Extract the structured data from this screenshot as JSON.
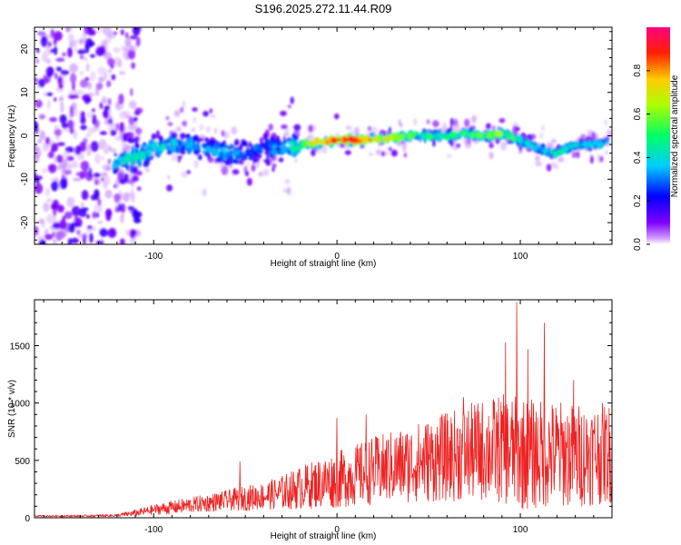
{
  "page": {
    "title": "S196.2025.272.11.44.R09"
  },
  "chart_data": [
    {
      "type": "heatmap",
      "title": "S196.2025.272.11.44.R09",
      "xlabel": "Height of straight line (km)",
      "ylabel": "Frequency (Hz)",
      "xlim": [
        -165,
        150
      ],
      "ylim": [
        -25,
        25
      ],
      "x_ticks": [
        -100,
        0,
        100
      ],
      "y_ticks": [
        -20,
        -10,
        0,
        10,
        20
      ],
      "x_tick_labels": [
        "-100",
        "0",
        "100"
      ],
      "y_tick_labels": [
        "-20",
        "-10",
        "0",
        "10",
        "20"
      ],
      "colorbar": {
        "label": "Normalized spectral amplitude",
        "range": [
          0,
          1
        ],
        "ticks": [
          0.0,
          0.2,
          0.4,
          0.6,
          0.8
        ],
        "tick_labels": [
          "0.0",
          "0.2",
          "0.4",
          "0.6",
          "0.8"
        ],
        "colormap": [
          "#ffffff",
          "#7f00ff",
          "#0000ff",
          "#00ffff",
          "#00ff00",
          "#ffff00",
          "#ff0000",
          "#ff0080"
        ]
      },
      "ridge": {
        "x": [
          -120,
          -110,
          -100,
          -90,
          -80,
          -70,
          -60,
          -50,
          -40,
          -30,
          -20,
          -10,
          0,
          10,
          20,
          30,
          40,
          50,
          60,
          70,
          80,
          90,
          100,
          110,
          120,
          130,
          140,
          148
        ],
        "freq": [
          -6,
          -5,
          -3,
          -2,
          -2,
          -3,
          -4,
          -4,
          -3,
          -3,
          -2,
          -1.5,
          -1,
          -1,
          -0.8,
          -0.5,
          0,
          0,
          0,
          0.5,
          0,
          0.5,
          -1,
          -3,
          -4,
          -2,
          -2,
          -1.5
        ],
        "amplitude": [
          0.4,
          0.45,
          0.4,
          0.4,
          0.35,
          0.35,
          0.35,
          0.3,
          0.3,
          0.35,
          0.5,
          0.75,
          0.85,
          0.9,
          0.8,
          0.65,
          0.55,
          0.5,
          0.5,
          0.5,
          0.55,
          0.6,
          0.45,
          0.4,
          0.45,
          0.4,
          0.4,
          0.45
        ]
      }
    },
    {
      "type": "line",
      "xlabel": "Height of straight line (km)",
      "ylabel": "SNR (10 * v/v)",
      "xlim": [
        -165,
        150
      ],
      "ylim": [
        0,
        1900
      ],
      "x_ticks": [
        -100,
        0,
        100
      ],
      "y_ticks": [
        0,
        500,
        1000,
        1500
      ],
      "x_tick_labels": [
        "-100",
        "0",
        "100"
      ],
      "y_tick_labels": [
        "0",
        "500",
        "1000",
        "1500"
      ],
      "line_color": "#ee2222",
      "envelope": {
        "x": [
          -165,
          -140,
          -120,
          -110,
          -100,
          -90,
          -80,
          -70,
          -60,
          -50,
          -40,
          -30,
          -20,
          -10,
          0,
          10,
          20,
          30,
          40,
          50,
          60,
          70,
          80,
          90,
          100,
          110,
          120,
          130,
          140,
          150
        ],
        "mean": [
          15,
          15,
          20,
          40,
          70,
          90,
          110,
          130,
          150,
          170,
          190,
          220,
          260,
          300,
          330,
          370,
          410,
          440,
          470,
          500,
          530,
          560,
          590,
          600,
          560,
          550,
          560,
          540,
          560,
          560
        ],
        "amplitude": [
          6,
          8,
          12,
          30,
          45,
          60,
          70,
          80,
          90,
          110,
          120,
          150,
          190,
          220,
          250,
          270,
          300,
          320,
          340,
          370,
          390,
          420,
          450,
          480,
          500,
          480,
          470,
          460,
          450,
          440
        ]
      },
      "peaks": [
        {
          "x": -53,
          "y": 490
        },
        {
          "x": 0,
          "y": 870
        },
        {
          "x": 16,
          "y": 900
        },
        {
          "x": 69,
          "y": 1050
        },
        {
          "x": 92,
          "y": 1530
        },
        {
          "x": 98,
          "y": 1880
        },
        {
          "x": 104,
          "y": 1470
        },
        {
          "x": 113,
          "y": 1700
        },
        {
          "x": 129,
          "y": 1200
        }
      ]
    }
  ]
}
